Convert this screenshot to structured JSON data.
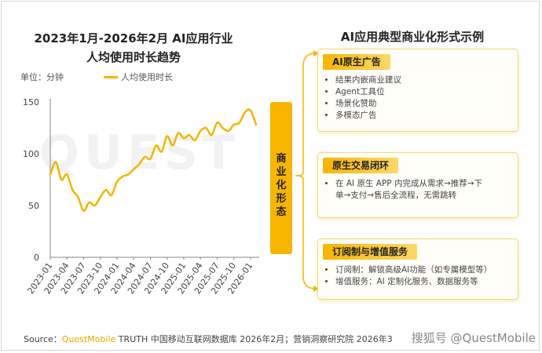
{
  "left_title_line1": "2023年1月-2026年2月 AI应用行业",
  "left_title_line2": "人均使用时长趋势",
  "unit_label": "单位：分钟",
  "watermark": "QUEST",
  "colors": {
    "accent": "#f7b500",
    "line": "#f5b400",
    "brand": "#f0a500"
  },
  "chart_data": {
    "type": "line",
    "x": [
      "2023-01",
      "2023-02",
      "2023-03",
      "2023-04",
      "2023-05",
      "2023-06",
      "2023-07",
      "2023-08",
      "2023-09",
      "2023-10",
      "2023-11",
      "2023-12",
      "2024-01",
      "2024-02",
      "2024-03",
      "2024-04",
      "2024-05",
      "2024-06",
      "2024-07",
      "2024-08",
      "2024-09",
      "2024-10",
      "2024-11",
      "2024-12",
      "2025-01",
      "2025-02",
      "2025-03",
      "2025-04",
      "2025-05",
      "2025-06",
      "2025-07",
      "2025-08",
      "2025-09",
      "2025-10",
      "2025-11",
      "2025-12",
      "2026-01",
      "2026-02"
    ],
    "x_tick_labels": [
      "2023-01",
      "2023-04",
      "2023-07",
      "2023-10",
      "2024-01",
      "2024-04",
      "2024-07",
      "2024-10",
      "2025-01",
      "2025-04",
      "2025-07",
      "2025-10",
      "2026-01"
    ],
    "x_tick_index": [
      0,
      3,
      6,
      9,
      12,
      15,
      18,
      21,
      24,
      27,
      30,
      33,
      36
    ],
    "series": [
      {
        "name": "人均使用时长",
        "values": [
          80,
          92,
          75,
          80,
          65,
          58,
          45,
          53,
          50,
          58,
          65,
          60,
          73,
          78,
          80,
          85,
          90,
          97,
          95,
          108,
          102,
          117,
          108,
          120,
          115,
          118,
          113,
          122,
          125,
          118,
          130,
          125,
          122,
          128,
          130,
          140,
          142,
          128
        ]
      }
    ],
    "ylim": [
      0,
      150
    ],
    "y_ticks": [
      0,
      50,
      100,
      150
    ],
    "grid": false,
    "legend": "top"
  },
  "right_title": "AI应用典型商业化形式示例",
  "vertical_label": [
    "商",
    "业",
    "化",
    "形",
    "态"
  ],
  "cards": [
    {
      "title": "AI原生广告",
      "items": [
        "结果内嵌商业建议",
        "Agent工具位",
        "场景化赞助",
        "多模态广告"
      ]
    },
    {
      "title": "原生交易闭环",
      "items": [
        "在 AI 原生 APP 内完成从需求→推荐→下",
        "单→支付→售后全流程，无需跳转"
      ]
    },
    {
      "title": "订阅制与增值服务",
      "items": [
        "订阅制：解锁高级AI功能（如专属模型等）",
        "增值服务：AI 定制化服务、数据服务等"
      ]
    }
  ],
  "footer": {
    "prefix": "Source：",
    "brand": "QuestMobile",
    "rest": " TRUTH 中国移动互联网数据库 2026年2月；营销洞察研究院 2026年3"
  },
  "watermark_right": "搜狐号 @QuestMobile"
}
